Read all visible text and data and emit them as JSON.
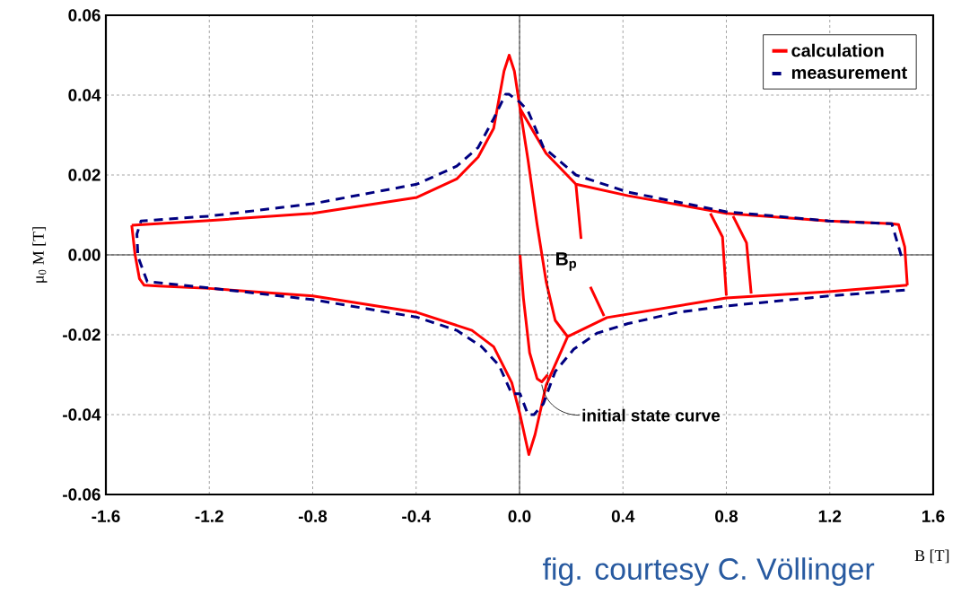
{
  "chart_data": {
    "type": "line",
    "xlabel": "B [T]",
    "ylabel": "μ$_{0}$ M [T]",
    "xlim": [
      -1.6,
      1.6
    ],
    "ylim": [
      -0.06,
      0.06
    ],
    "xticks": [
      -1.6,
      -1.2,
      -0.8,
      -0.4,
      {
        "value": 0,
        "label": "0.0"
      },
      0.4,
      0.8,
      1.2,
      1.6
    ],
    "yticks": [
      -0.06,
      -0.04,
      -0.02,
      {
        "value": 0,
        "label": "0.00"
      },
      0.02,
      0.04,
      0.06
    ],
    "grid": true,
    "legend": "top right",
    "series": [
      {
        "name": "calculation",
        "color": "#ff0000",
        "line_style": "solid",
        "x": [
          1.5,
          1.49,
          1.466,
          1.44,
          1.196,
          0.8,
          0.42,
          0.218,
          0.103,
          0.002,
          -0.02,
          -0.04,
          -0.06,
          -0.1,
          -0.16,
          -0.243,
          -0.397,
          -0.8,
          -1.2,
          -1.5
        ],
        "values": [
          -0.0076,
          0.002,
          0.0076,
          0.0078,
          0.0085,
          0.0104,
          0.0148,
          0.0177,
          0.0254,
          0.0366,
          0.046,
          0.05,
          0.046,
          0.0317,
          0.0245,
          0.019,
          0.0144,
          0.0104,
          0.0086,
          0.0074
        ]
      },
      {
        "color": "#ff0000",
        "line_style": "solid",
        "x": [
          -1.5,
          -1.487,
          -1.47,
          -1.452,
          -1.395,
          -1.2,
          -0.8,
          -0.397,
          -0.184,
          -0.1,
          -0.03,
          0.002,
          0.036,
          0.06,
          0.103,
          0.186,
          0.338,
          0.8,
          1.196,
          1.5
        ],
        "values": [
          0.0074,
          0.0,
          -0.006,
          -0.0076,
          -0.0078,
          -0.0084,
          -0.0103,
          -0.0144,
          -0.0189,
          -0.023,
          -0.032,
          -0.04,
          -0.05,
          -0.045,
          -0.0326,
          -0.0205,
          -0.0157,
          -0.0108,
          -0.0092,
          -0.0076
        ]
      },
      {
        "color": "#ff0000",
        "line_style": "solid",
        "x": [
          0.002,
          0.015,
          0.039,
          0.068,
          0.086,
          0.109
        ],
        "values": [
          0.0,
          -0.0108,
          -0.0245,
          -0.031,
          -0.0318,
          -0.03
        ]
      },
      {
        "color": "#ff0000",
        "line_style": "solid",
        "x": [
          0.002,
          0.033,
          0.068,
          0.103,
          0.138,
          0.186
        ],
        "values": [
          0.0366,
          0.0237,
          0.0076,
          -0.0067,
          -0.0164,
          -0.0205
        ]
      },
      {
        "color": "#ff0000",
        "line_style": "solid",
        "x": [
          0.218,
          0.238,
          0.256,
          0.274,
          0.327
        ],
        "values": [
          0.0177,
          0.004,
          null,
          -0.008,
          -0.0153
        ]
      },
      {
        "color": "#ff0000",
        "line_style": "solid",
        "x": [
          0.738,
          0.785,
          0.8
        ],
        "values": [
          0.0104,
          0.0045,
          -0.0102
        ]
      },
      {
        "color": "#ff0000",
        "line_style": "solid",
        "x": [
          0.826,
          0.878,
          0.896
        ],
        "values": [
          0.0097,
          0.003,
          -0.0097
        ]
      },
      {
        "name": "measurement",
        "color": "#000080",
        "line_style": "dashed",
        "x": [
          1.49,
          1.196,
          0.8,
          0.61,
          0.42,
          0.3,
          0.21,
          0.138,
          0.092,
          0.056,
          0.033,
          0.002,
          -0.03,
          -0.079,
          -0.148,
          -0.243,
          -0.397,
          -0.8,
          -1.2,
          -1.44,
          -1.476,
          -1.48,
          -1.464,
          -1.2,
          -0.8,
          -0.397,
          -0.243,
          -0.16,
          -0.1,
          -0.054,
          -0.04,
          0.002,
          0.033,
          0.092,
          0.218,
          0.42,
          0.8,
          1.196,
          1.44,
          1.48
        ],
        "values": [
          -0.0088,
          -0.0103,
          -0.0128,
          -0.0144,
          -0.0172,
          -0.0196,
          -0.0236,
          -0.0292,
          -0.0373,
          -0.04,
          -0.04,
          -0.0348,
          -0.0348,
          -0.0277,
          -0.0229,
          -0.0189,
          -0.0156,
          -0.0112,
          -0.0083,
          -0.0067,
          -0.0004,
          0.0052,
          0.0085,
          0.0097,
          0.0128,
          0.0177,
          0.0222,
          0.0269,
          0.0341,
          0.0402,
          0.0402,
          0.0382,
          0.036,
          0.027,
          0.02,
          0.0157,
          0.0108,
          0.0085,
          0.0078,
          -0.001
        ]
      }
    ],
    "annotations": [
      {
        "text": "B$_{p}$",
        "x": 0.109,
        "y": -0.034
      },
      {
        "text": "initial state curve",
        "x": 0.086,
        "y": -0.0325
      },
      "fig. courtesy C. Völlinger"
    ]
  }
}
